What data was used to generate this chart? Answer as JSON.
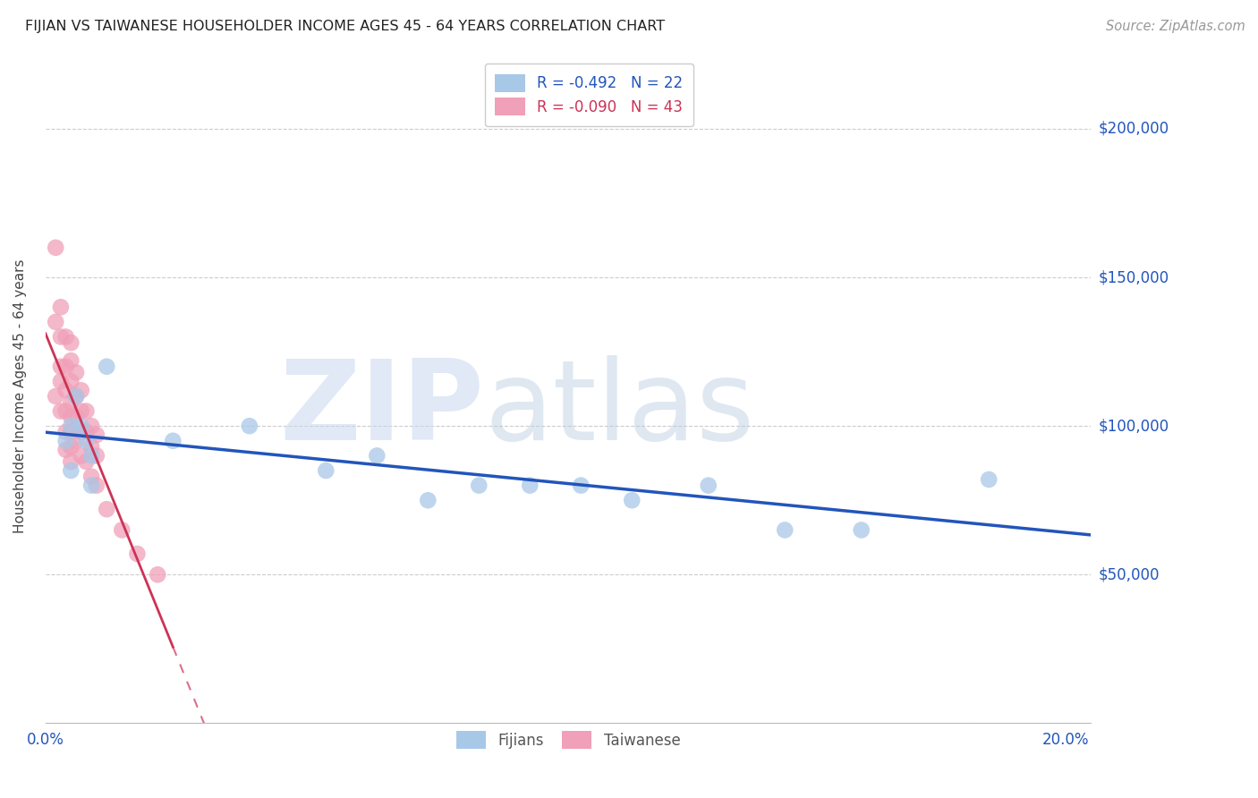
{
  "title": "FIJIAN VS TAIWANESE HOUSEHOLDER INCOME AGES 45 - 64 YEARS CORRELATION CHART",
  "source": "Source: ZipAtlas.com",
  "ylabel": "Householder Income Ages 45 - 64 years",
  "xlim": [
    0.0,
    0.205
  ],
  "ylim": [
    0,
    220000
  ],
  "yticks": [
    0,
    50000,
    100000,
    150000,
    200000
  ],
  "ytick_labels": [
    "",
    "$50,000",
    "$100,000",
    "$150,000",
    "$200,000"
  ],
  "xticks": [
    0.0,
    0.05,
    0.1,
    0.15,
    0.2
  ],
  "xtick_labels": [
    "0.0%",
    "",
    "",
    "",
    "20.0%"
  ],
  "fijian_color": "#a8c8e8",
  "taiwanese_color": "#f0a0b8",
  "fijian_line_color": "#2255bb",
  "taiwanese_line_color": "#cc3355",
  "fijian_R": -0.492,
  "fijian_N": 22,
  "taiwanese_R": -0.09,
  "taiwanese_N": 43,
  "watermark_zip": "ZIP",
  "watermark_atlas": "atlas",
  "fijian_x": [
    0.004,
    0.005,
    0.005,
    0.006,
    0.007,
    0.008,
    0.009,
    0.009,
    0.012,
    0.025,
    0.04,
    0.055,
    0.065,
    0.075,
    0.085,
    0.095,
    0.105,
    0.115,
    0.13,
    0.145,
    0.16,
    0.185
  ],
  "fijian_y": [
    95000,
    100000,
    85000,
    110000,
    100000,
    95000,
    90000,
    80000,
    120000,
    95000,
    100000,
    85000,
    90000,
    75000,
    80000,
    80000,
    80000,
    75000,
    80000,
    65000,
    65000,
    82000
  ],
  "taiwanese_x": [
    0.002,
    0.002,
    0.002,
    0.003,
    0.003,
    0.003,
    0.003,
    0.003,
    0.004,
    0.004,
    0.004,
    0.004,
    0.004,
    0.004,
    0.005,
    0.005,
    0.005,
    0.005,
    0.005,
    0.005,
    0.005,
    0.005,
    0.006,
    0.006,
    0.006,
    0.006,
    0.007,
    0.007,
    0.007,
    0.007,
    0.008,
    0.008,
    0.008,
    0.009,
    0.009,
    0.009,
    0.01,
    0.01,
    0.01,
    0.012,
    0.015,
    0.018,
    0.022
  ],
  "taiwanese_y": [
    160000,
    135000,
    110000,
    140000,
    130000,
    120000,
    115000,
    105000,
    130000,
    120000,
    112000,
    105000,
    98000,
    92000,
    128000,
    122000,
    115000,
    108000,
    103000,
    98000,
    93000,
    88000,
    118000,
    110000,
    103000,
    95000,
    112000,
    105000,
    98000,
    90000,
    105000,
    98000,
    88000,
    100000,
    93000,
    83000,
    97000,
    90000,
    80000,
    72000,
    65000,
    57000,
    50000
  ]
}
